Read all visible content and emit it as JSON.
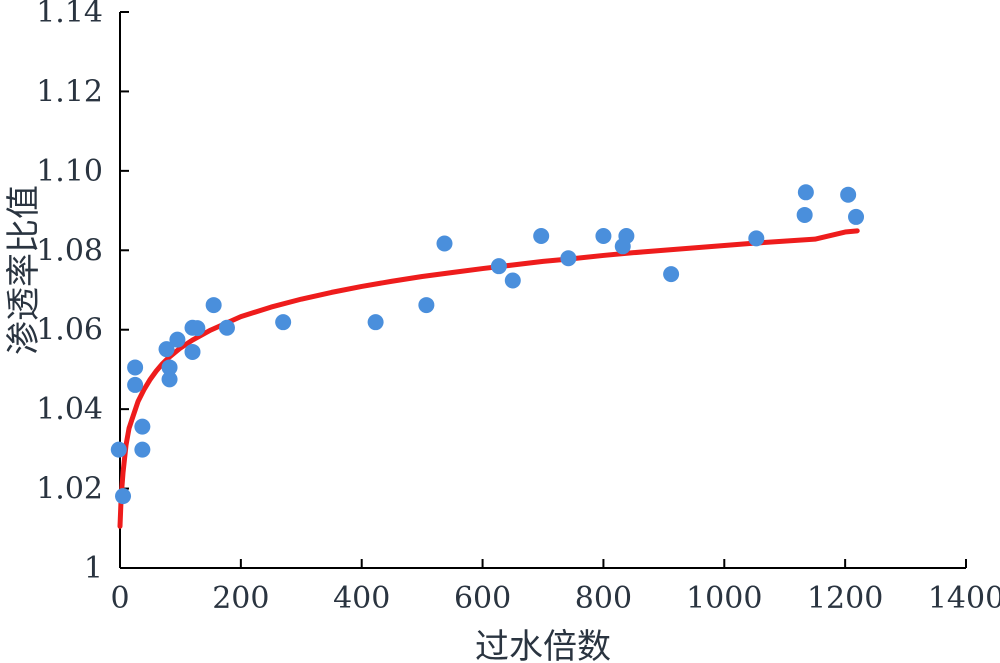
{
  "chart_data": {
    "type": "scatter",
    "title": "",
    "xlabel": "过水倍数",
    "ylabel": "渗透率比值",
    "xlim": [
      0,
      1400
    ],
    "ylim": [
      1.0,
      1.14
    ],
    "xticks": [
      0,
      200,
      400,
      600,
      800,
      1000,
      1200,
      1400
    ],
    "xtick_labels": [
      "0",
      "200",
      "400",
      "600",
      "800",
      "1000",
      "1200",
      "1400"
    ],
    "yticks": [
      1.0,
      1.02,
      1.04,
      1.06,
      1.08,
      1.1,
      1.12,
      1.14
    ],
    "ytick_labels": [
      "1",
      "1.02",
      "1.04",
      "1.06",
      "1.08",
      "1.10",
      "1.12",
      "1.14"
    ],
    "grid": false,
    "series": [
      {
        "type": "scatter",
        "color": "#4a8fdc",
        "points": [
          [
            -2,
            1.0298
          ],
          [
            5,
            1.0181
          ],
          [
            25,
            1.0505
          ],
          [
            25,
            1.0461
          ],
          [
            37,
            1.0356
          ],
          [
            37,
            1.0298
          ],
          [
            77,
            1.0551
          ],
          [
            82,
            1.0505
          ],
          [
            82,
            1.0475
          ],
          [
            95,
            1.0575
          ],
          [
            120,
            1.0605
          ],
          [
            120,
            1.0544
          ],
          [
            128,
            1.0604
          ],
          [
            155,
            1.0662
          ],
          [
            177,
            1.0605
          ],
          [
            270,
            1.0619
          ],
          [
            423,
            1.0619
          ],
          [
            507,
            1.0662
          ],
          [
            537,
            1.0817
          ],
          [
            627,
            1.076
          ],
          [
            650,
            1.0724
          ],
          [
            697,
            1.0836
          ],
          [
            742,
            1.078
          ],
          [
            800,
            1.0836
          ],
          [
            832,
            1.081
          ],
          [
            838,
            1.0836
          ],
          [
            912,
            1.074
          ],
          [
            1053,
            1.083
          ],
          [
            1133,
            1.0889
          ],
          [
            1135,
            1.0946
          ],
          [
            1205,
            1.094
          ],
          [
            1218,
            1.0884
          ]
        ]
      },
      {
        "type": "line",
        "color": "#ee1c1c",
        "x": [
          0,
          2,
          5,
          10,
          15,
          20,
          30,
          40,
          50,
          60,
          70,
          80,
          100,
          120,
          150,
          200,
          250,
          300,
          350,
          400,
          450,
          500,
          550,
          600,
          650,
          700,
          750,
          800,
          850,
          900,
          950,
          1000,
          1050,
          1100,
          1150,
          1200,
          1220
        ],
        "y": [
          1.0105,
          1.0181,
          1.024,
          1.031,
          1.0352,
          1.0375,
          1.042,
          1.045,
          1.0475,
          1.0496,
          1.0514,
          1.0529,
          1.0554,
          1.0574,
          1.0599,
          1.0633,
          1.0657,
          1.0677,
          1.0694,
          1.0709,
          1.0722,
          1.0734,
          1.0744,
          1.0754,
          1.0763,
          1.0772,
          1.0779,
          1.0787,
          1.0794,
          1.08,
          1.0806,
          1.0812,
          1.0818,
          1.0823,
          1.0828,
          1.0846,
          1.0849
        ]
      }
    ]
  }
}
